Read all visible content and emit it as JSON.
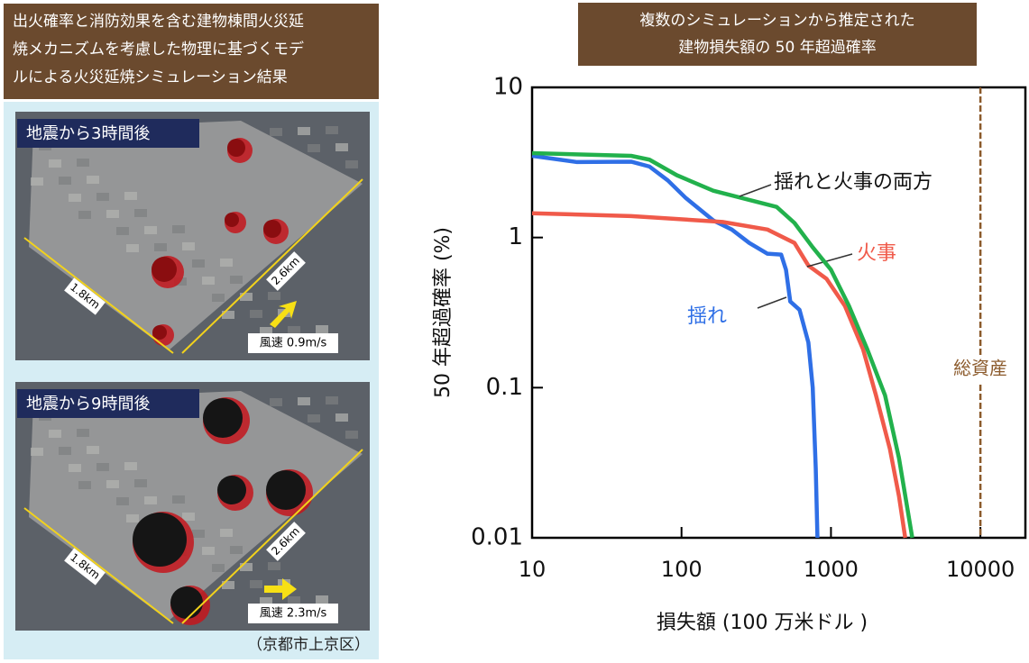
{
  "left_panel": {
    "title_lines": [
      "出火確率と消防効果を含む建物棟間火災延",
      "焼メカニズムを考慮した物理に基づくモデ",
      "ルによる火災延焼シミュレーション結果"
    ],
    "panels": [
      {
        "label": "地震から3時間後",
        "width_label": "1.8km",
        "depth_label": "2.6km",
        "wind_label": "風速 0.9m/s"
      },
      {
        "label": "地震から9時間後",
        "width_label": "1.8km",
        "depth_label": "2.6km",
        "wind_label": "風速 2.3m/s"
      }
    ],
    "caption": "（京都市上京区）"
  },
  "chart_data": {
    "type": "line",
    "title": [
      "複数のシミュレーションから推定された",
      "建物損失額の 50 年超過確率"
    ],
    "x_label": "損失額 (100 万米ドル )",
    "y_label": "50 年超過確率 (%)",
    "xscale": "log",
    "yscale": "log",
    "xlim": [
      10,
      20000
    ],
    "ylim": [
      0.01,
      10
    ],
    "xticks": [
      10,
      100,
      1000,
      10000
    ],
    "yticks": [
      0.01,
      0.1,
      1,
      10
    ],
    "series": [
      {
        "name": "揺れ",
        "color": "#2f6fe6",
        "x": [
          10,
          20,
          46,
          61,
          81,
          107,
          163,
          217,
          284,
          376,
          464,
          500,
          534,
          616,
          706,
          755,
          791,
          812
        ],
        "values": [
          3.5,
          3.18,
          3.2,
          2.97,
          2.4,
          1.83,
          1.3,
          1.13,
          0.92,
          0.78,
          0.77,
          0.61,
          0.375,
          0.33,
          0.2,
          0.1,
          0.029,
          0.01
        ]
      },
      {
        "name": "火事",
        "color": "#f05a4a",
        "x": [
          10,
          46,
          188,
          376,
          570,
          706,
          935,
          1240,
          1640,
          2000,
          2480,
          2850,
          3140
        ],
        "values": [
          1.45,
          1.39,
          1.27,
          1.13,
          0.92,
          0.65,
          0.53,
          0.35,
          0.18,
          0.089,
          0.039,
          0.019,
          0.01
        ]
      },
      {
        "name": "揺れと火事の両方",
        "color": "#22b14c",
        "x": [
          10,
          46,
          61,
          93,
          163,
          284,
          433,
          570,
          755,
          1000,
          1320,
          1750,
          2300,
          2850,
          3500
        ],
        "values": [
          3.65,
          3.5,
          3.3,
          2.6,
          2.05,
          1.78,
          1.6,
          1.25,
          0.86,
          0.61,
          0.35,
          0.18,
          0.089,
          0.034,
          0.01
        ]
      }
    ],
    "reference_line": {
      "label": "総資産",
      "x": 10000,
      "color": "#8b5a2b"
    }
  }
}
